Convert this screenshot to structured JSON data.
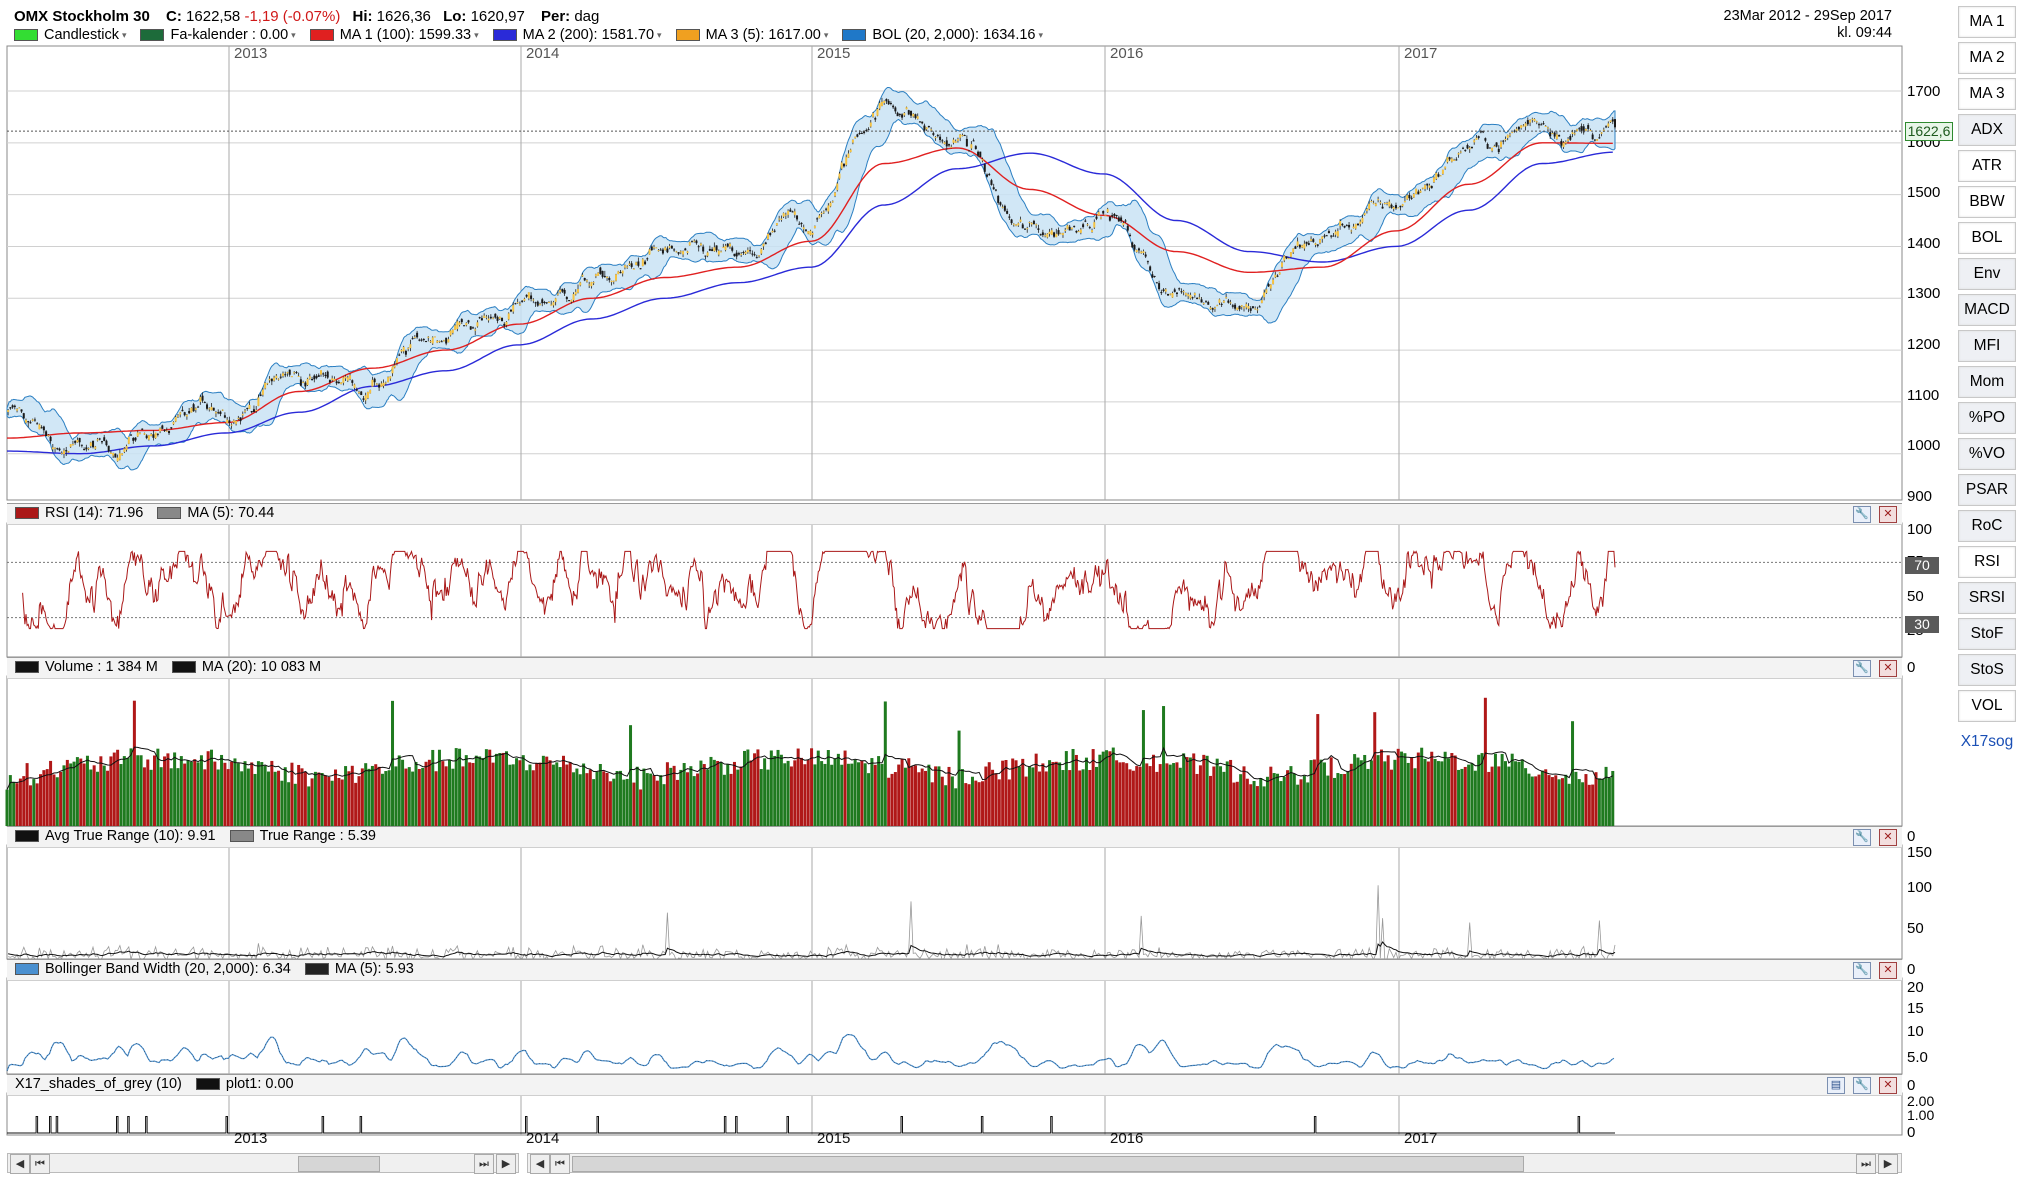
{
  "header": {
    "name": "OMX Stockholm 30",
    "close_label": "C:",
    "close_value": "1622,58",
    "change": "-1,19 (-0.07%)",
    "high_label": "Hi:",
    "high_value": "1626,36",
    "low_label": "Lo:",
    "low_value": "1620,97",
    "period_label": "Per:",
    "period_value": "dag",
    "date_range": "23Mar 2012 - 29Sep 2017",
    "time": "kl. 09:44"
  },
  "legend_main": [
    {
      "label": "Candlestick",
      "color": "#33dd33"
    },
    {
      "label": "Fa-kalender : 0.00",
      "color": "#1d6b3a"
    },
    {
      "label": "MA 1 (100): 1599.33",
      "color": "#e02020"
    },
    {
      "label": "MA 2 (200): 1581.70",
      "color": "#2a2ad8"
    },
    {
      "label": "MA 3 (5): 1617.00",
      "color": "#f0a020"
    },
    {
      "label": "BOL (20, 2,000): 1634.16",
      "color": "#1f78c8"
    }
  ],
  "panels": {
    "rsi": {
      "label1": "RSI (14): 71.96",
      "color1": "#aa1818",
      "label2": "MA (5): 70.44",
      "color2": "#888888",
      "ticks": [
        "100",
        "75",
        "50",
        "25",
        "0"
      ],
      "tag_high": "70",
      "tag_low": "30"
    },
    "volume": {
      "label1": "Volume : 1 384 M",
      "color1": "#111111",
      "label2": "MA (20): 10 083 M",
      "color2": "#111111",
      "ticks": [
        "0"
      ]
    },
    "atr": {
      "label1": "Avg True Range (10): 9.91",
      "color1": "#111111",
      "label2": "True Range : 5.39",
      "color2": "#888888",
      "ticks": [
        "150",
        "100",
        "50",
        "0"
      ]
    },
    "bbw": {
      "label1": "Bollinger Band Width (20, 2,000): 6.34",
      "color1": "#4a90d0",
      "label2": "MA (5): 5.93",
      "color2": "#222222",
      "ticks": [
        "20",
        "15",
        "10",
        "5.0",
        "0"
      ]
    },
    "x17": {
      "label1": "X17_shades_of_grey (10)",
      "label2": "plot1: 0.00",
      "color2": "#111111",
      "ticks": [
        "2.00",
        "1.00",
        "0"
      ]
    }
  },
  "price_axis": {
    "ticks": [
      "1700",
      "1600",
      "1500",
      "1400",
      "1300",
      "1200",
      "1100",
      "1000",
      "900"
    ],
    "last_tag": "1622,6"
  },
  "years": [
    "2013",
    "2014",
    "2015",
    "2016",
    "2017"
  ],
  "sidebar": [
    "MA 1",
    "MA 2",
    "MA 3",
    "ADX",
    "ATR",
    "BBW",
    "BOL",
    "Env",
    "MACD",
    "MFI",
    "Mom",
    "%PO",
    "%VO",
    "PSAR",
    "RoC",
    "RSI",
    "SRSI",
    "StoF",
    "StoS",
    "VOL",
    "X17sog"
  ],
  "chart_data": {
    "type": "line",
    "title": "OMX Stockholm 30",
    "x_range": [
      "2012-03-23",
      "2017-09-29"
    ],
    "ylim": [
      900,
      1750
    ],
    "x": [
      "2012-03",
      "2012-06",
      "2012-09",
      "2012-12",
      "2013-03",
      "2013-06",
      "2013-09",
      "2013-12",
      "2014-03",
      "2014-06",
      "2014-09",
      "2014-12",
      "2015-03",
      "2015-06",
      "2015-09",
      "2015-12",
      "2016-03",
      "2016-06",
      "2016-09",
      "2016-12",
      "2017-03",
      "2017-06",
      "2017-09"
    ],
    "series": [
      {
        "name": "Candlestick",
        "values": [
          1075,
          1000,
          1040,
          1090,
          1150,
          1140,
          1240,
          1280,
          1330,
          1380,
          1370,
          1450,
          1680,
          1600,
          1420,
          1470,
          1310,
          1300,
          1420,
          1480,
          1590,
          1640,
          1622
        ]
      },
      {
        "name": "MA 1 (100)",
        "values": [
          1030,
          1040,
          1045,
          1060,
          1120,
          1165,
          1200,
          1250,
          1300,
          1340,
          1360,
          1410,
          1560,
          1590,
          1510,
          1460,
          1390,
          1350,
          1360,
          1430,
          1520,
          1600,
          1599
        ]
      },
      {
        "name": "MA 2 (200)",
        "values": [
          1005,
          1000,
          1015,
          1040,
          1080,
          1130,
          1160,
          1210,
          1260,
          1300,
          1330,
          1360,
          1480,
          1550,
          1580,
          1540,
          1450,
          1390,
          1370,
          1400,
          1470,
          1560,
          1582
        ]
      }
    ],
    "grid": true,
    "legend_position": "top-left"
  }
}
